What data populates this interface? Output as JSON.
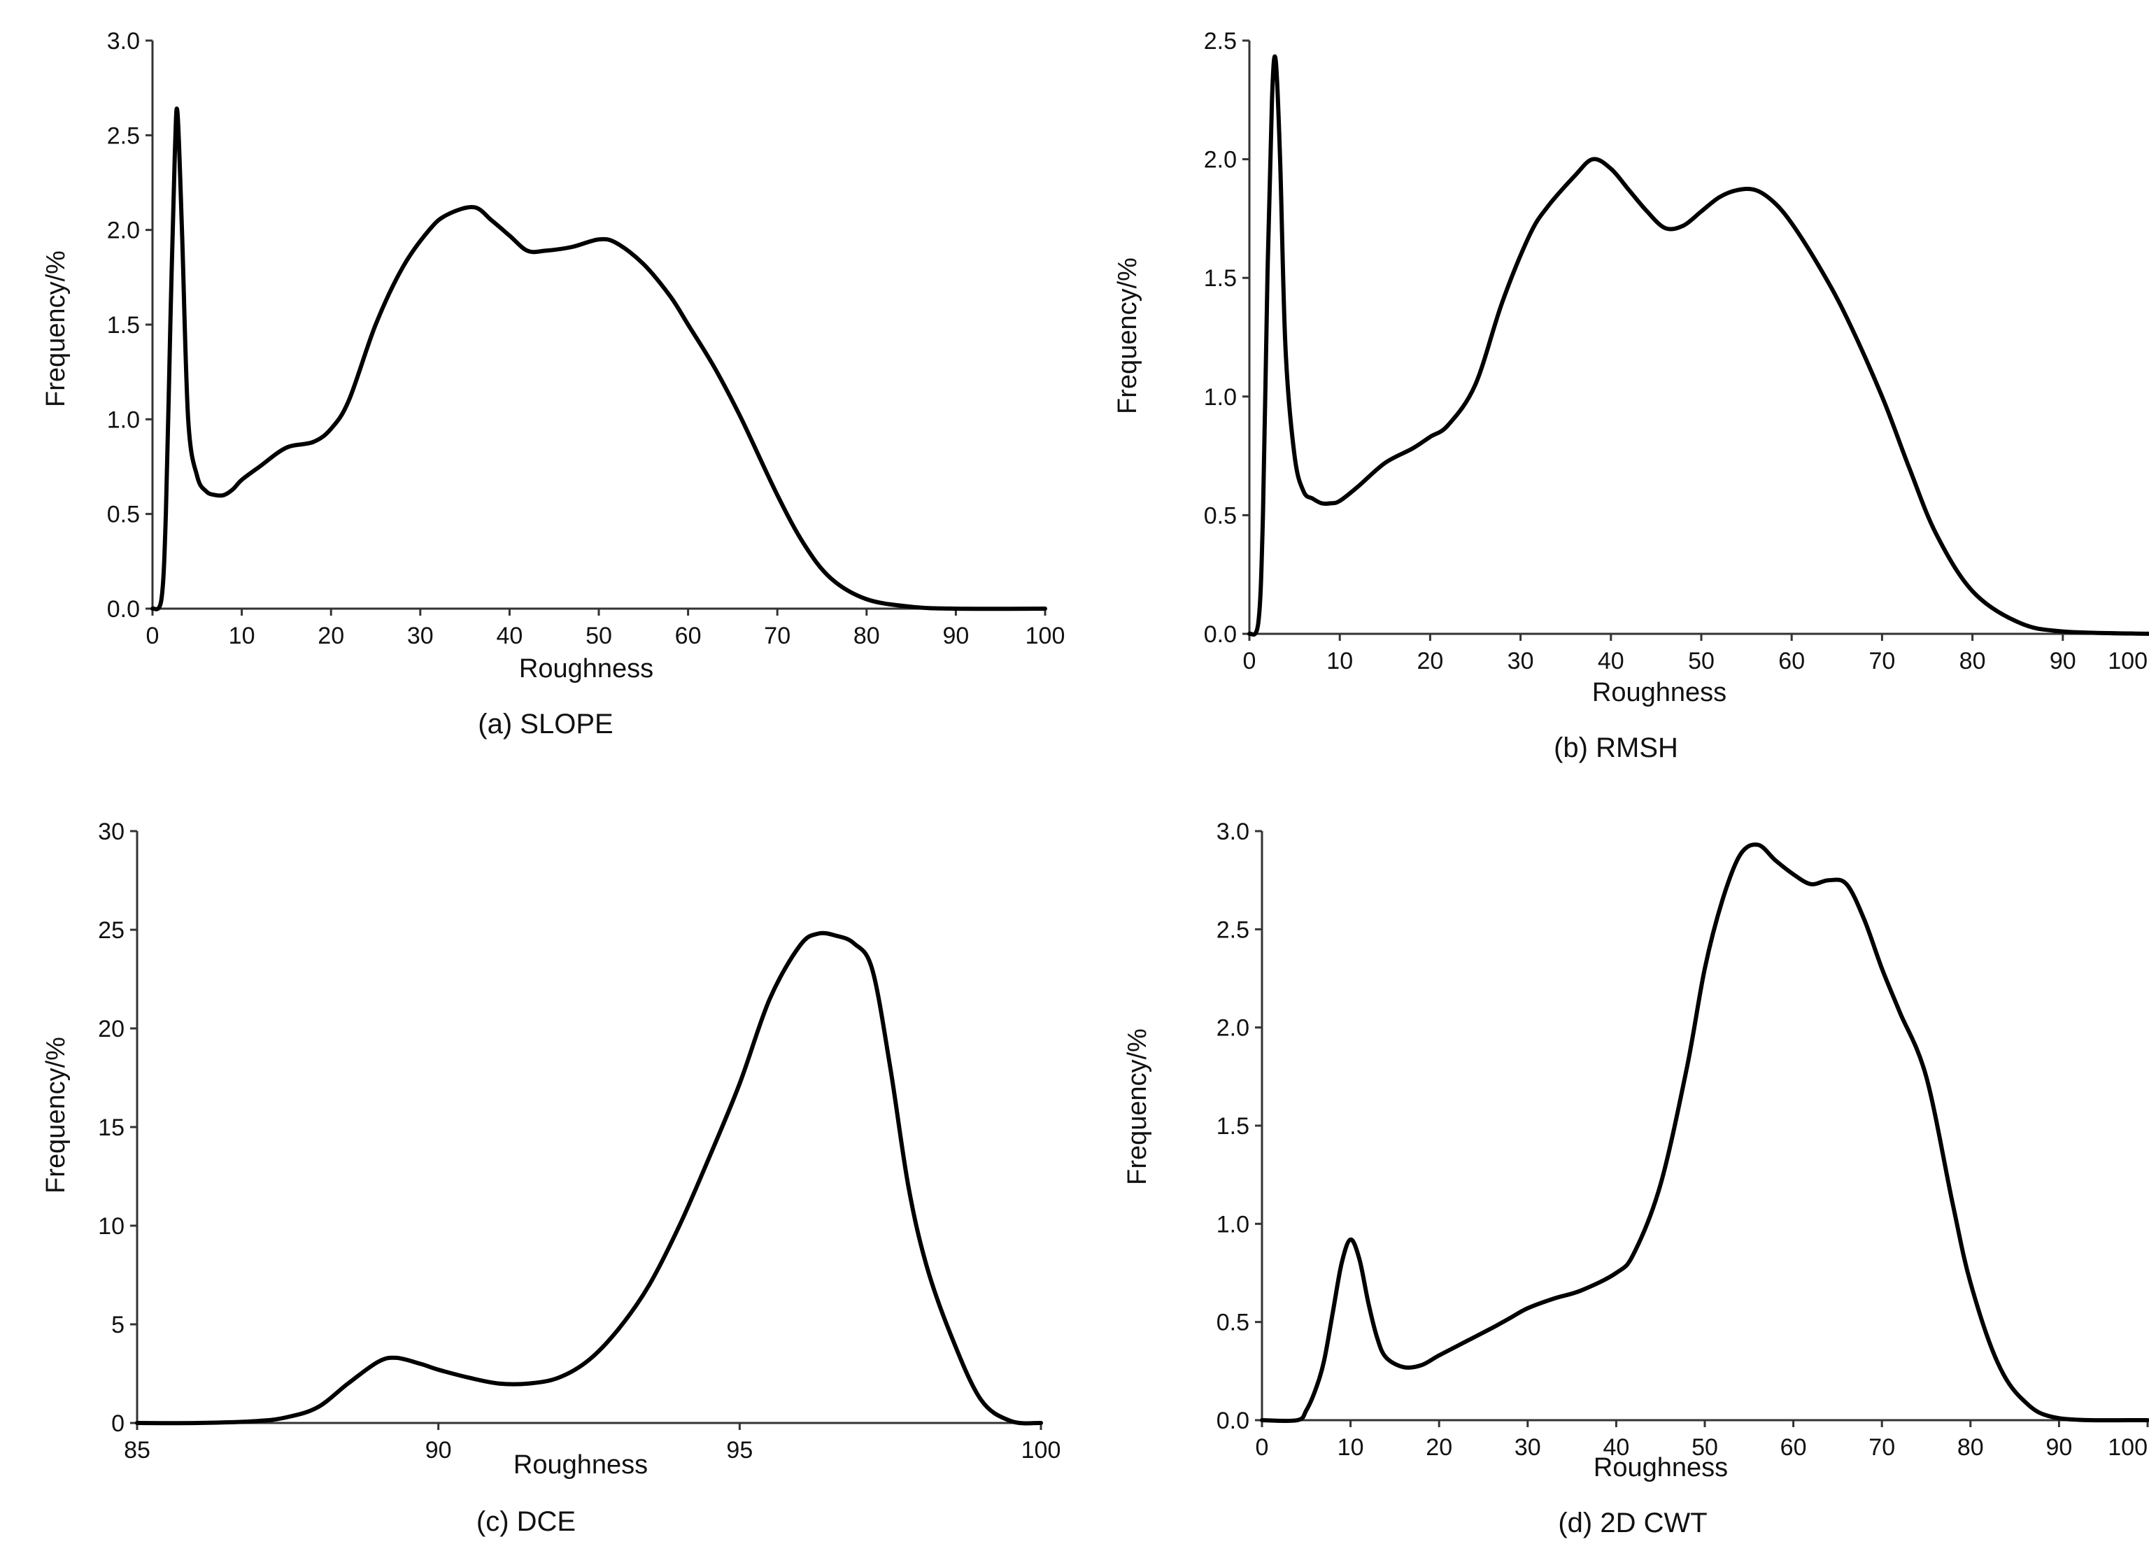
{
  "chart_data": [
    {
      "type": "line",
      "caption": "(a) SLOPE",
      "xlabel": "Roughness",
      "ylabel": "Frequency/%",
      "xlim": [
        0,
        100
      ],
      "ylim": [
        0,
        3.0
      ],
      "xticks": [
        "0",
        "10",
        "20",
        "30",
        "40",
        "50",
        "60",
        "70",
        "80",
        "90",
        "100"
      ],
      "yticks": [
        "0.0",
        "0.5",
        "1.0",
        "1.5",
        "2.0",
        "2.5",
        "3.0"
      ],
      "grid": false,
      "series": [
        {
          "name": "SLOPE",
          "x": [
            0,
            1,
            1.5,
            2,
            2.5,
            2.8,
            3.3,
            4,
            5,
            6,
            7,
            8,
            9,
            10,
            12,
            15,
            18,
            20,
            22,
            25,
            28,
            31,
            33,
            36,
            38,
            40,
            42,
            44,
            47,
            50,
            52,
            55,
            58,
            60,
            63,
            66,
            70,
            73,
            76,
            80,
            85,
            90,
            100
          ],
          "y": [
            0.0,
            0.05,
            0.5,
            1.5,
            2.4,
            2.62,
            2.0,
            1.0,
            0.7,
            0.62,
            0.6,
            0.6,
            0.63,
            0.68,
            0.75,
            0.85,
            0.88,
            0.95,
            1.1,
            1.5,
            1.8,
            2.0,
            2.08,
            2.12,
            2.05,
            1.97,
            1.89,
            1.89,
            1.91,
            1.95,
            1.93,
            1.82,
            1.65,
            1.5,
            1.27,
            1.0,
            0.6,
            0.34,
            0.16,
            0.05,
            0.01,
            0.0,
            0.0
          ]
        }
      ]
    },
    {
      "type": "line",
      "caption": "(b) RMSH",
      "xlabel": "Roughness",
      "ylabel": "Frequency/%",
      "xlim": [
        0,
        100
      ],
      "ylim": [
        0,
        2.5
      ],
      "xticks": [
        "0",
        "10",
        "20",
        "30",
        "40",
        "50",
        "60",
        "70",
        "80",
        "90",
        "100"
      ],
      "yticks": [
        "0.0",
        "0.5",
        "1.0",
        "1.5",
        "2.0",
        "2.5"
      ],
      "grid": false,
      "series": [
        {
          "name": "RMSH",
          "x": [
            0,
            1,
            1.5,
            2,
            2.5,
            2.9,
            3.4,
            4,
            5,
            6,
            7,
            8,
            9,
            10,
            12,
            15,
            18,
            20,
            22,
            25,
            28,
            31,
            33,
            36,
            38,
            40,
            42,
            44,
            46,
            48,
            50,
            52,
            54,
            56,
            58,
            60,
            63,
            66,
            70,
            73,
            76,
            80,
            85,
            90,
            100
          ],
          "y": [
            0.0,
            0.05,
            0.5,
            1.5,
            2.25,
            2.42,
            2.0,
            1.2,
            0.75,
            0.6,
            0.57,
            0.55,
            0.55,
            0.56,
            0.62,
            0.72,
            0.78,
            0.83,
            0.88,
            1.05,
            1.4,
            1.68,
            1.8,
            1.93,
            2.0,
            1.96,
            1.87,
            1.78,
            1.71,
            1.72,
            1.78,
            1.84,
            1.87,
            1.87,
            1.82,
            1.73,
            1.55,
            1.34,
            1.0,
            0.7,
            0.42,
            0.18,
            0.05,
            0.01,
            0.0
          ]
        }
      ]
    },
    {
      "type": "line",
      "caption": "(c) DCE",
      "xlabel": "Roughness",
      "ylabel": "Frequency/%",
      "xlim": [
        85,
        100
      ],
      "ylim": [
        0,
        30
      ],
      "xticks": [
        "85",
        "90",
        "95",
        "100"
      ],
      "yticks": [
        "0",
        "5",
        "10",
        "15",
        "20",
        "25",
        "30"
      ],
      "grid": false,
      "series": [
        {
          "name": "DCE",
          "x": [
            85,
            86,
            87,
            87.5,
            88,
            88.5,
            89,
            89.3,
            89.7,
            90,
            90.5,
            91,
            91.5,
            92,
            92.5,
            93,
            93.5,
            94,
            94.5,
            95,
            95.5,
            96,
            96.3,
            96.6,
            96.9,
            97.2,
            97.5,
            97.8,
            98.1,
            98.5,
            99,
            99.5,
            100
          ],
          "y": [
            0,
            0,
            0.1,
            0.3,
            0.8,
            2.0,
            3.1,
            3.3,
            3.0,
            2.7,
            2.3,
            2.0,
            2.0,
            2.3,
            3.2,
            4.8,
            7.0,
            10.0,
            13.5,
            17.2,
            21.5,
            24.2,
            24.8,
            24.7,
            24.3,
            23.0,
            18.0,
            12.0,
            8.0,
            4.5,
            1.2,
            0.1,
            0
          ]
        }
      ]
    },
    {
      "type": "line",
      "caption": "(d) 2D CWT",
      "xlabel": "Roughness",
      "ylabel": "Frequency/%",
      "xlim": [
        0,
        100
      ],
      "ylim": [
        0,
        3.0
      ],
      "xticks": [
        "0",
        "10",
        "20",
        "30",
        "40",
        "50",
        "60",
        "70",
        "80",
        "90",
        "100"
      ],
      "yticks": [
        "0.0",
        "0.5",
        "1.0",
        "1.5",
        "2.0",
        "2.5",
        "3.0"
      ],
      "grid": false,
      "series": [
        {
          "name": "2D CWT",
          "x": [
            0,
            4,
            5,
            6,
            7,
            8,
            9,
            10,
            11,
            12,
            13,
            14,
            16,
            18,
            20,
            23,
            26,
            28,
            30,
            33,
            36,
            40,
            42,
            45,
            48,
            50,
            52,
            54,
            56,
            58,
            60,
            62,
            64,
            66,
            68,
            70,
            72,
            75,
            78,
            80,
            83,
            86,
            90,
            100
          ],
          "y": [
            0,
            0,
            0.05,
            0.15,
            0.3,
            0.55,
            0.8,
            0.92,
            0.82,
            0.6,
            0.42,
            0.32,
            0.27,
            0.28,
            0.33,
            0.4,
            0.47,
            0.52,
            0.57,
            0.62,
            0.66,
            0.75,
            0.85,
            1.2,
            1.8,
            2.3,
            2.65,
            2.88,
            2.93,
            2.85,
            2.78,
            2.73,
            2.75,
            2.73,
            2.55,
            2.3,
            2.08,
            1.75,
            1.1,
            0.7,
            0.3,
            0.1,
            0.01,
            0
          ]
        }
      ]
    }
  ]
}
